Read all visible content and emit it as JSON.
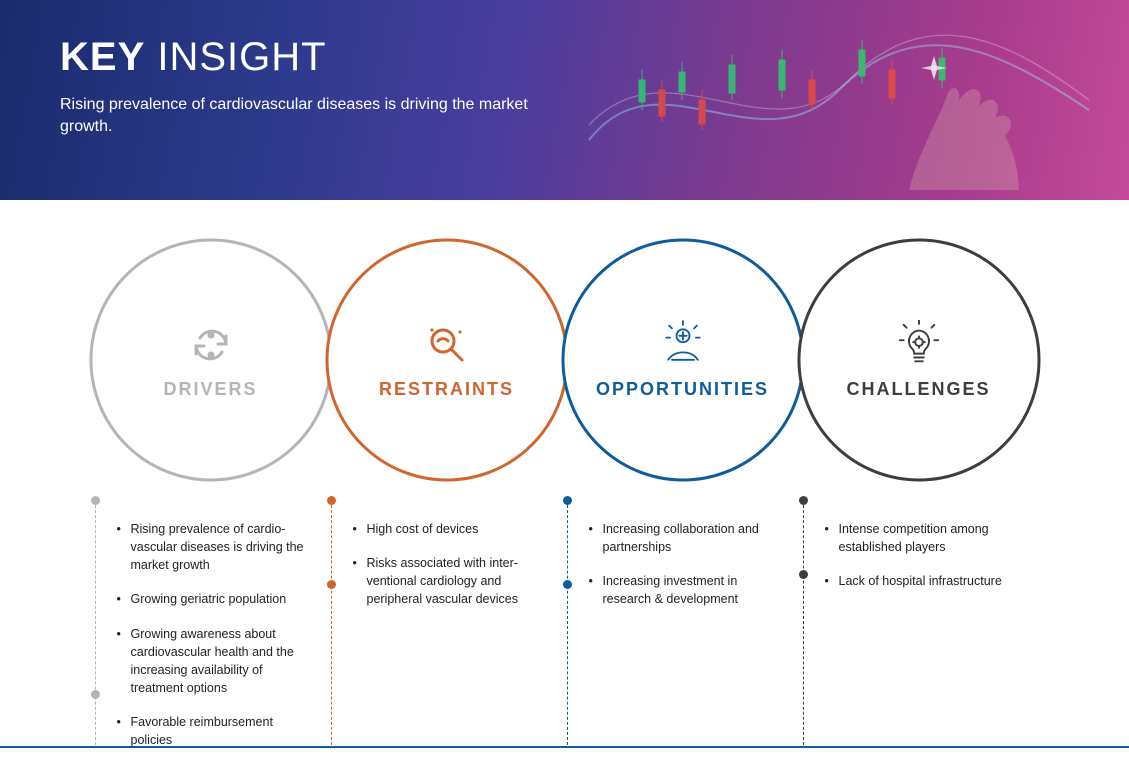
{
  "header": {
    "title_bold": "KEY",
    "title_light": "INSIGHT",
    "subtitle": "Rising prevalence of cardiovascular diseases is driving the market growth."
  },
  "colors": {
    "drivers": "#b5b5b5",
    "restraints": "#d1652e",
    "opportunities": "#0e5c9e",
    "challenges": "#3e3e3e",
    "bottom_rule": "#0e5c9e"
  },
  "circles": [
    {
      "key": "drivers",
      "label": "DRIVERS",
      "icon": "cycle"
    },
    {
      "key": "restraints",
      "label": "RESTRAINTS",
      "icon": "magnify"
    },
    {
      "key": "opportunities",
      "label": "OPPORTUNITIES",
      "icon": "hand"
    },
    {
      "key": "challenges",
      "label": "CHALLENGES",
      "icon": "bulb"
    }
  ],
  "lists": {
    "drivers": [
      "Rising prevalence of cardio­vascular diseases is driving the market growth",
      "Growing geriatric popula­tion",
      "Growing awareness about cardiovascular health and the increasing availability of treatment options",
      "Favorable reimbursement policies"
    ],
    "restraints": [
      "High cost of devices",
      "Risks associated with inter­ventional cardiology and peripheral vascular devices"
    ],
    "opportunities": [
      "Increasing collaboration and partnerships",
      "Increasing investment in research & development"
    ],
    "challenges": [
      "Intense competition among established players",
      "Lack of hospital infrastruc­ture"
    ]
  },
  "dot_end_bottom": {
    "drivers": 180,
    "restraints": 70,
    "opportunities": 70,
    "challenges": 60
  },
  "circle_geom": {
    "size": 260,
    "r": 120,
    "stroke_w": 3,
    "arrow_last": false
  },
  "header_deco": {
    "wave_color": "#9ad0f5",
    "candle_up": "#2ecc71",
    "candle_down": "#e74c3c",
    "star_color": "#ffffff"
  }
}
